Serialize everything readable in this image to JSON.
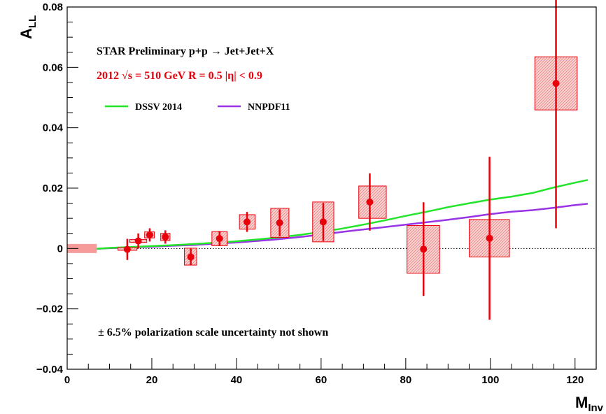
{
  "chart_data": {
    "type": "scatter",
    "title": "",
    "xlabel": "M",
    "xlabel_sub": "Inv",
    "ylabel": "A",
    "ylabel_sub": "LL",
    "xlim": [
      0,
      125
    ],
    "ylim": [
      -0.04,
      0.08
    ],
    "x_ticks": [
      0,
      20,
      40,
      60,
      80,
      100,
      120
    ],
    "x_tick_labels": [
      "0",
      "20",
      "40",
      "60",
      "80",
      "100",
      "120"
    ],
    "y_ticks": [
      -0.04,
      -0.02,
      0,
      0.02,
      0.04,
      0.06,
      0.08
    ],
    "y_tick_labels": [
      "−0.04",
      "−0.02",
      "0",
      "0.02",
      "0.04",
      "0.06",
      "0.08"
    ],
    "grid": false,
    "zero_line": "dotted",
    "annotations": {
      "line1": "STAR Preliminary p+p  → Jet+Jet+X",
      "line2": "2012  √s = 510 GeV R = 0.5  |η| < 0.9",
      "note": "± 6.5% polarization scale uncertainty not shown"
    },
    "colors": {
      "data": "#e8000a",
      "box_fill": "#f6c4c4",
      "dssv": "#22e52a",
      "nnpdf": "#9933e6",
      "scale_band": "#f79a9a"
    },
    "scale_band": {
      "x0": 0,
      "x1": 7,
      "y0": -0.0015,
      "y1": 0.0015
    },
    "legend": [
      {
        "name": "DSSV 2014",
        "color": "#22e52a"
      },
      {
        "name": "NNPDF11",
        "color": "#9933e6"
      }
    ],
    "series": [
      {
        "name": "DSSV 2014",
        "x": [
          7,
          10,
          15,
          20,
          25,
          30,
          35,
          40,
          45,
          50,
          55,
          60,
          65,
          70,
          75,
          80,
          85,
          90,
          95,
          100,
          105,
          110,
          115,
          120,
          123
        ],
        "y": [
          -0.0001,
          0.0002,
          0.0005,
          0.0008,
          0.0011,
          0.0015,
          0.0019,
          0.0024,
          0.003,
          0.0037,
          0.0045,
          0.0055,
          0.0066,
          0.0079,
          0.0093,
          0.0108,
          0.0122,
          0.0137,
          0.015,
          0.0162,
          0.0172,
          0.0184,
          0.0202,
          0.0218,
          0.0227
        ]
      },
      {
        "name": "NNPDF11",
        "x": [
          7,
          10,
          15,
          20,
          25,
          30,
          35,
          40,
          45,
          50,
          55,
          60,
          65,
          70,
          75,
          80,
          85,
          90,
          95,
          100,
          105,
          110,
          115,
          120,
          123
        ],
        "y": [
          -0.0001,
          0.0001,
          0.0004,
          0.0006,
          0.0009,
          0.0012,
          0.0016,
          0.002,
          0.0025,
          0.0031,
          0.0038,
          0.0046,
          0.0055,
          0.0063,
          0.0071,
          0.0079,
          0.0087,
          0.0095,
          0.0104,
          0.0114,
          0.0122,
          0.0127,
          0.0135,
          0.0144,
          0.0148
        ]
      },
      {
        "name": "data",
        "points": [
          {
            "x": 14.2,
            "y": -0.0003,
            "stat_err": 0.0035,
            "sys_x": [
              12.0,
              16.5
            ],
            "sys_y": [
              -0.0006,
              0.0003
            ]
          },
          {
            "x": 16.8,
            "y": 0.0025,
            "stat_err": 0.0025,
            "sys_x": [
              14.8,
              18.8
            ],
            "sys_y": [
              0.002,
              0.003
            ]
          },
          {
            "x": 19.5,
            "y": 0.0045,
            "stat_err": 0.0022,
            "sys_x": [
              18.3,
              20.6
            ],
            "sys_y": [
              0.0035,
              0.0055
            ]
          },
          {
            "x": 23.2,
            "y": 0.0038,
            "stat_err": 0.0022,
            "sys_x": [
              22.1,
              24.3
            ],
            "sys_y": [
              0.0026,
              0.005
            ]
          },
          {
            "x": 29.2,
            "y": -0.0028,
            "stat_err": 0.0028,
            "sys_x": [
              27.7,
              30.6
            ],
            "sys_y": [
              -0.0055,
              0.0001
            ]
          },
          {
            "x": 36.0,
            "y": 0.0033,
            "stat_err": 0.0025,
            "sys_x": [
              34.2,
              37.8
            ],
            "sys_y": [
              0.0009,
              0.0056
            ]
          },
          {
            "x": 42.5,
            "y": 0.0088,
            "stat_err": 0.0033,
            "sys_x": [
              40.7,
              44.4
            ],
            "sys_y": [
              0.0064,
              0.0112
            ]
          },
          {
            "x": 50.2,
            "y": 0.0085,
            "stat_err": 0.0045,
            "sys_x": [
              48.1,
              52.4
            ],
            "sys_y": [
              0.0037,
              0.0133
            ]
          },
          {
            "x": 60.5,
            "y": 0.0088,
            "stat_err": 0.0063,
            "sys_x": [
              58.0,
              63.0
            ],
            "sys_y": [
              0.0022,
              0.0154
            ]
          },
          {
            "x": 71.5,
            "y": 0.0154,
            "stat_err": 0.0095,
            "sys_x": [
              68.9,
              75.4
            ],
            "sys_y": [
              0.01,
              0.0207
            ]
          },
          {
            "x": 84.2,
            "y": -0.0002,
            "stat_err": 0.0155,
            "sys_x": [
              80.3,
              88.0
            ],
            "sys_y": [
              -0.0082,
              0.0076
            ]
          },
          {
            "x": 99.8,
            "y": 0.0034,
            "stat_err": 0.027,
            "sys_x": [
              95.0,
              104.5
            ],
            "sys_y": [
              -0.0028,
              0.0096
            ]
          },
          {
            "x": 115.5,
            "y": 0.0547,
            "stat_err": 0.048,
            "sys_x": [
              110.5,
              120.5
            ],
            "sys_y": [
              0.0459,
              0.0635
            ]
          }
        ]
      }
    ]
  }
}
